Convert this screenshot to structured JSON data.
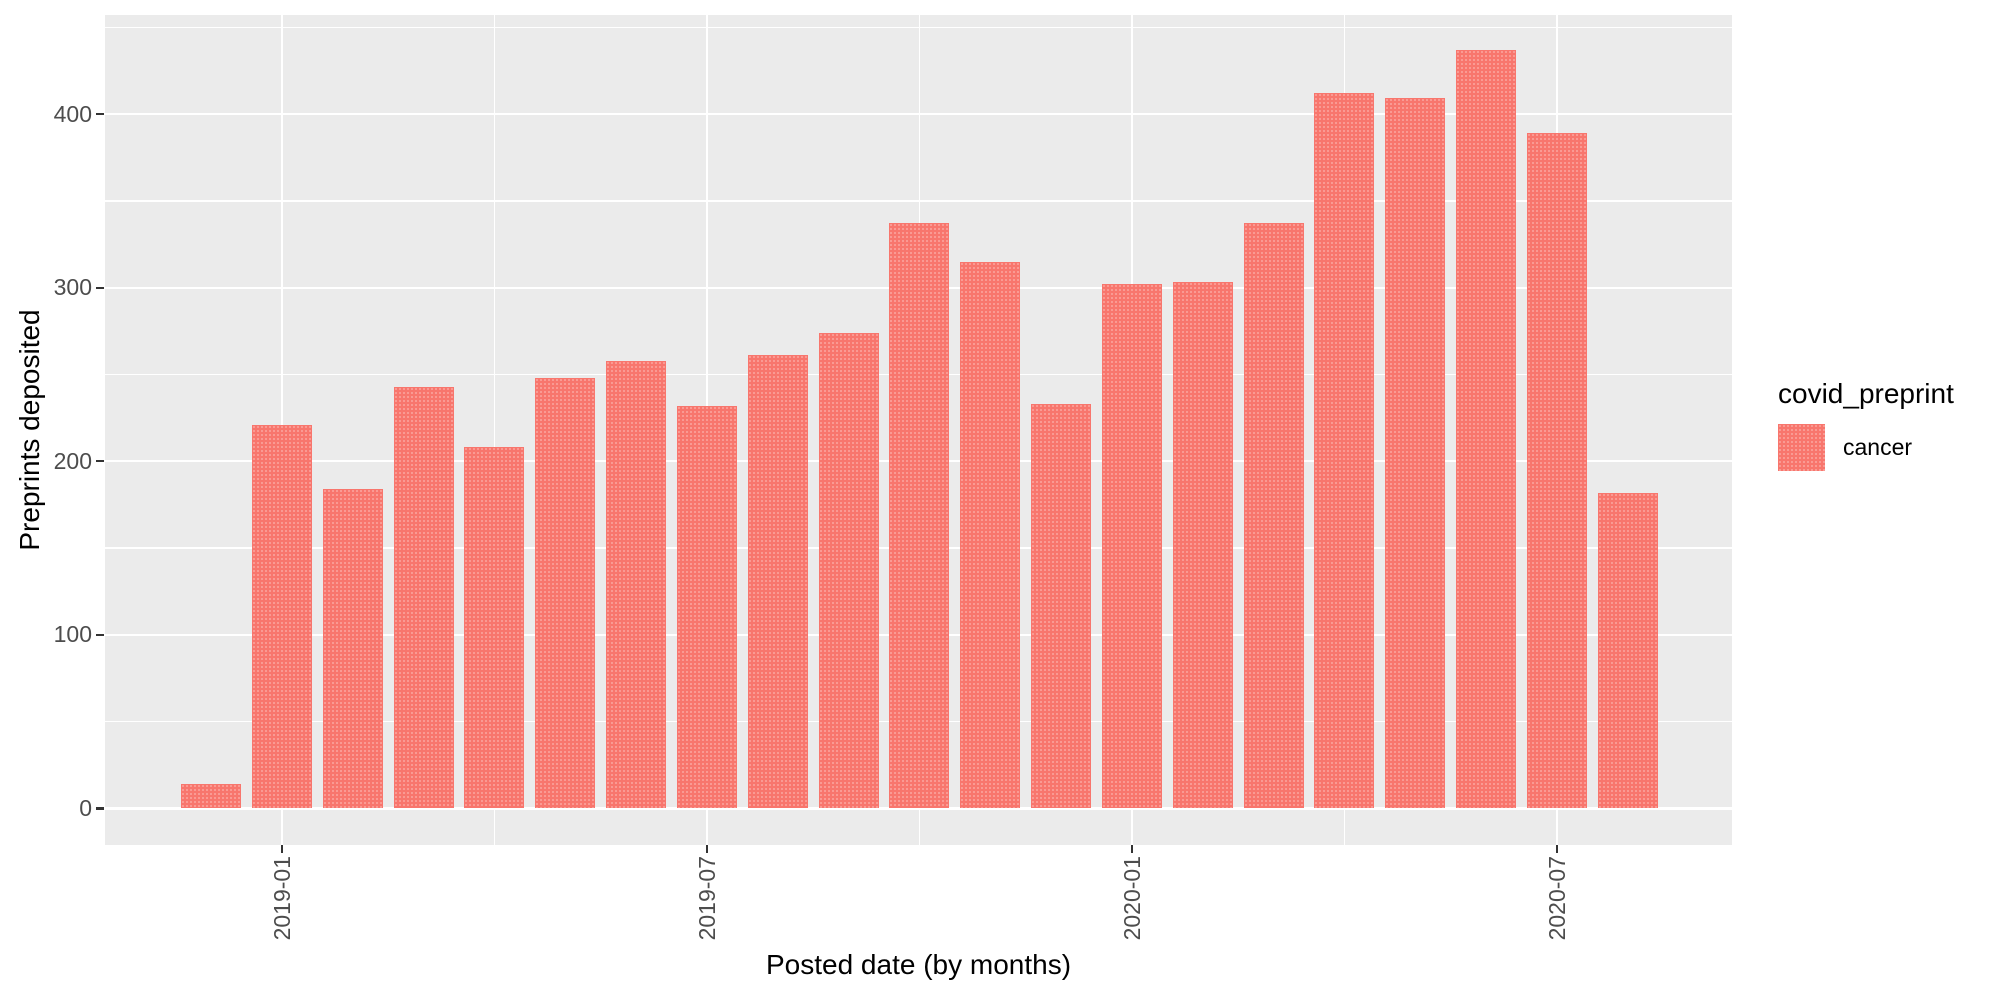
{
  "chart_data": {
    "type": "bar",
    "title": "",
    "xlabel": "Posted date (by months)",
    "ylabel": "Preprints deposited",
    "categories": [
      "2018-12",
      "2019-01",
      "2019-02",
      "2019-03",
      "2019-04",
      "2019-05",
      "2019-06",
      "2019-07",
      "2019-08",
      "2019-09",
      "2019-10",
      "2019-11",
      "2019-12",
      "2020-01",
      "2020-02",
      "2020-03",
      "2020-04",
      "2020-05",
      "2020-06",
      "2020-07",
      "2020-08"
    ],
    "values": [
      14,
      221,
      184,
      243,
      208,
      248,
      258,
      232,
      261,
      274,
      337,
      315,
      233,
      302,
      303,
      337,
      412,
      409,
      437,
      389,
      182
    ],
    "x_tick_labels": [
      "2019-01",
      "2019-07",
      "2020-01",
      "2020-07"
    ],
    "y_tick_labels": [
      "0",
      "100",
      "200",
      "300",
      "400"
    ],
    "y_ticks": [
      0,
      100,
      200,
      300,
      400
    ],
    "y_minor_ticks": [
      50,
      150,
      250,
      350,
      450
    ],
    "ylim": [
      -21,
      457
    ],
    "grid": true,
    "legend_position": "right",
    "legend": {
      "title": "covid_preprint",
      "entries": [
        {
          "label": "cancer",
          "color": "#F8766D"
        }
      ]
    },
    "colors": {
      "bar_fill": "#F8766D",
      "panel_background": "#EBEBEB",
      "gridline": "#FFFFFF",
      "axis_text": "#4D4D4D",
      "axis_title": "#000000",
      "tick_mark": "#333333",
      "figure_background": "#FFFFFF"
    }
  }
}
